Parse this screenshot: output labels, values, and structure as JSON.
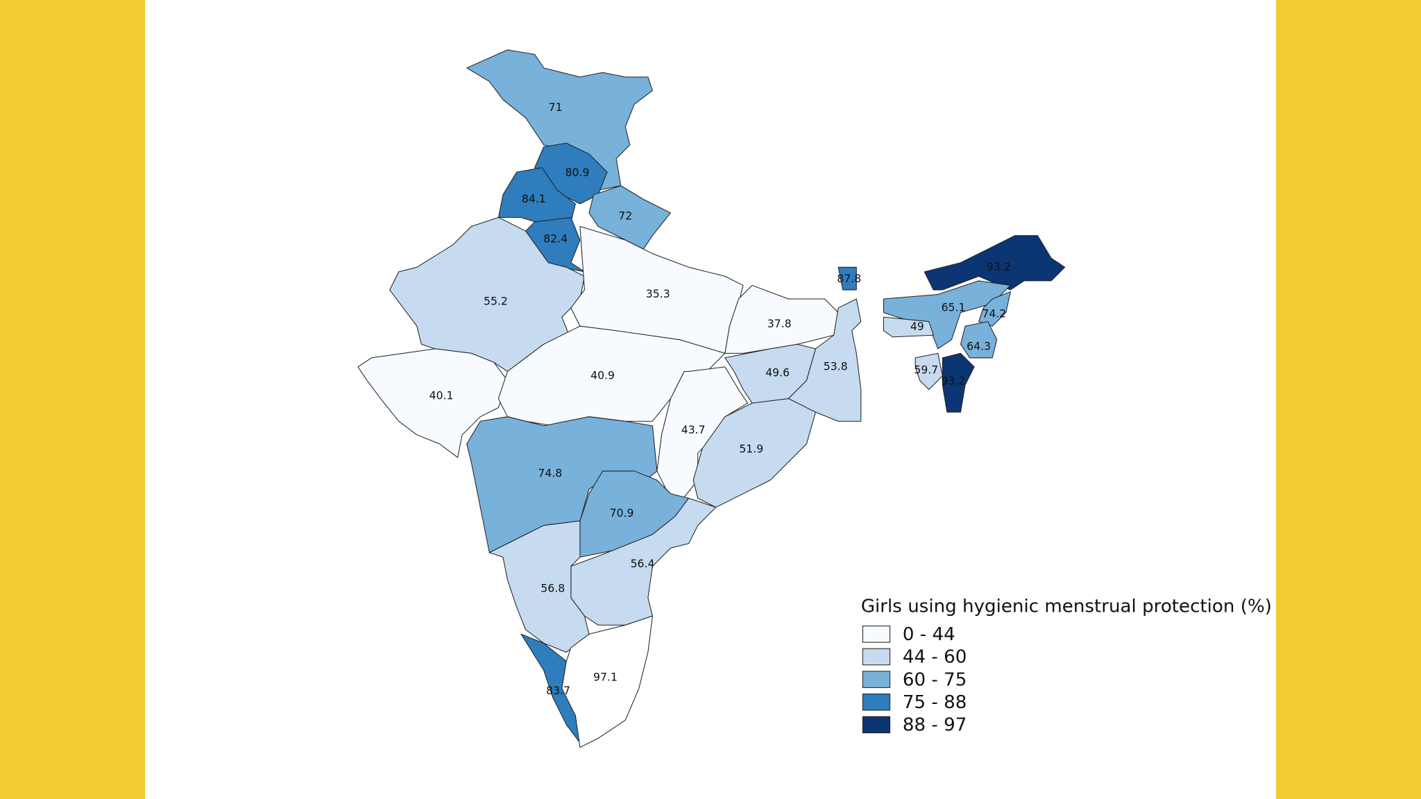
{
  "map": {
    "regions": [
      {
        "value": 71
      },
      {
        "value": 80.9
      },
      {
        "value": 84.1
      },
      {
        "value": 82.4
      },
      {
        "value": 72
      },
      {
        "value": 55.2
      },
      {
        "value": 40.1
      },
      {
        "value": 35.3
      },
      {
        "value": 40.9
      },
      {
        "value": 37.8
      },
      {
        "value": 49.6
      },
      {
        "value": 53.8
      },
      {
        "value": 43.7
      },
      {
        "value": 51.9
      },
      {
        "value": 74.8
      },
      {
        "value": 70.9
      },
      {
        "value": 56.4
      },
      {
        "value": 56.8
      },
      {
        "value": 83.7
      },
      {
        "value": 97.1
      },
      {
        "value": 87.8
      },
      {
        "value": 93.2
      },
      {
        "value": 65.1
      },
      {
        "value": 49
      },
      {
        "value": 74.2
      },
      {
        "value": 64.3
      },
      {
        "value": 93.2
      },
      {
        "value": 59.7
      }
    ],
    "legend": {
      "title": "Girls using hygienic menstrual protection (%)",
      "classes": [
        {
          "label": "0 - 44",
          "range": [
            0,
            44
          ],
          "color": "#f7fbff"
        },
        {
          "label": "44 - 60",
          "range": [
            44,
            60
          ],
          "color": "#c6dbef"
        },
        {
          "label": "60 - 75",
          "range": [
            60,
            75
          ],
          "color": "#78b1da"
        },
        {
          "label": "75 - 88",
          "range": [
            75,
            88
          ],
          "color": "#2f7dbd"
        },
        {
          "label": "88 - 97",
          "range": [
            88,
            97
          ],
          "color": "#0c3573"
        }
      ]
    }
  }
}
